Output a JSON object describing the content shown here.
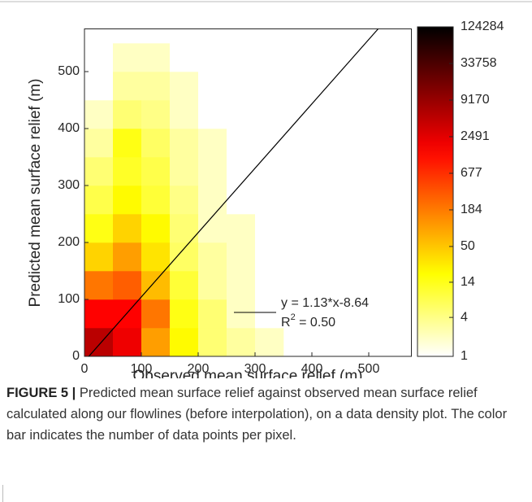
{
  "chart_data": {
    "type": "density2d",
    "xlabel": "Observed mean surface relief (m)",
    "ylabel": "Predicted mean surface relief (m)",
    "xlim": [
      0,
      575
    ],
    "ylim": [
      0,
      575
    ],
    "xticks": [
      0,
      100,
      200,
      300,
      400,
      500
    ],
    "yticks": [
      0,
      100,
      200,
      300,
      400,
      500
    ],
    "xbins": [
      0,
      50,
      100,
      150,
      200,
      250,
      300,
      350,
      400
    ],
    "ybins": [
      0,
      50,
      100,
      150,
      200,
      250,
      300,
      350,
      400,
      450,
      500,
      550,
      600
    ],
    "values": [
      [
        5000,
        2000,
        100,
        20,
        5,
        3,
        2,
        null
      ],
      [
        1500,
        1500,
        200,
        15,
        5,
        2,
        1,
        null
      ],
      [
        200,
        300,
        60,
        10,
        3,
        2,
        1,
        null
      ],
      [
        40,
        100,
        30,
        6,
        3,
        2,
        1,
        null
      ],
      [
        15,
        40,
        20,
        5,
        2,
        2,
        1,
        1
      ],
      [
        8,
        20,
        10,
        4,
        2,
        1,
        1,
        null
      ],
      [
        5,
        12,
        8,
        3,
        2,
        1,
        1,
        null
      ],
      [
        3,
        15,
        6,
        3,
        2,
        1,
        null,
        null
      ],
      [
        2,
        5,
        4,
        2,
        1,
        1,
        null,
        null
      ],
      [
        1,
        3,
        3,
        2,
        1,
        null,
        null,
        null
      ],
      [
        1,
        2,
        2,
        1,
        1,
        null,
        null,
        null
      ],
      [
        null,
        1,
        1,
        1,
        null,
        null,
        null,
        null
      ]
    ],
    "colormap": "hot-reversed",
    "clim": [
      1,
      124284
    ],
    "clog": true,
    "cticks": [
      1,
      4,
      14,
      50,
      184,
      677,
      2491,
      9170,
      33758,
      124284
    ],
    "fit": {
      "slope": 1.13,
      "intercept": -8.64,
      "label": "y = 1.13*x-8.64",
      "r2_symbol": "R",
      "r2_exp": "2",
      "r2_text": " = 0.50"
    }
  },
  "caption": {
    "label": "FIGURE 5 |",
    "text": "Predicted mean surface relief against observed mean surface relief calculated along our flowlines (before interpolation), on a data density plot. The color bar indicates the number of data points per pixel."
  }
}
